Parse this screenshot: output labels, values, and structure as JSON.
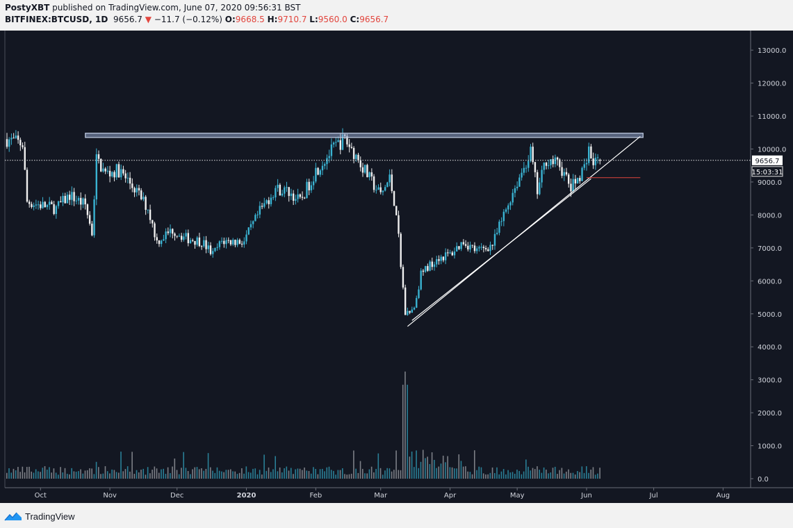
{
  "header": {
    "author": "PostyXBT",
    "published_text": "published on TradingView.com, June 07, 2020 09:56:31 BST",
    "symbol": "BITFINEX:BTCUSD, 1D",
    "last": "9656.7",
    "change_arrow": "▼",
    "change": "−11.7 (−0.12%)",
    "open_label": "O:",
    "open": "9668.5",
    "high_label": "H:",
    "high": "9710.7",
    "low_label": "L:",
    "low": "9560.0",
    "close_label": "C:",
    "close": "9656.7"
  },
  "price_tag": "9656.7",
  "countdown_tag": "15:03:31",
  "footer": {
    "brand": "TradingView"
  },
  "colors": {
    "up": "#3ab3d2",
    "down": "#f0f0f0",
    "background": "#131722",
    "down_text": "#e2453d"
  },
  "chart_data": {
    "type": "candlestick",
    "y_ticks": [
      "13000.0",
      "12000.0",
      "11000.0",
      "10000.0",
      "9000.0",
      "8000.0",
      "7000.0",
      "6000.0",
      "5000.0",
      "4000.0",
      "3000.0",
      "2000.0",
      "1000.0",
      "0.0"
    ],
    "x_ticks": [
      {
        "label": "Oct",
        "date": "2019-10-01"
      },
      {
        "label": "Nov",
        "date": "2019-11-01"
      },
      {
        "label": "Dec",
        "date": "2019-12-01"
      },
      {
        "label": "2020",
        "date": "2020-01-01"
      },
      {
        "label": "Feb",
        "date": "2020-02-01"
      },
      {
        "label": "Mar",
        "date": "2020-03-01"
      },
      {
        "label": "Apr",
        "date": "2020-04-01"
      },
      {
        "label": "May",
        "date": "2020-05-01"
      },
      {
        "label": "Jun",
        "date": "2020-06-01"
      },
      {
        "label": "Jul",
        "date": "2020-07-01"
      },
      {
        "label": "Aug",
        "date": "2020-08-01"
      }
    ],
    "start_date": "2019-09-16",
    "end_date": "2020-06-07",
    "price_ohlc_anchor_points": [
      [
        "2019-09-16",
        10300
      ],
      [
        "2019-09-23",
        10150
      ],
      [
        "2019-09-25",
        8400
      ],
      [
        "2019-10-01",
        8300
      ],
      [
        "2019-10-08",
        8200
      ],
      [
        "2019-10-14",
        8600
      ],
      [
        "2019-10-21",
        8300
      ],
      [
        "2019-10-24",
        7450
      ],
      [
        "2019-10-26",
        9700
      ],
      [
        "2019-10-30",
        9250
      ],
      [
        "2019-11-05",
        9350
      ],
      [
        "2019-11-12",
        8800
      ],
      [
        "2019-11-18",
        8200
      ],
      [
        "2019-11-22",
        7200
      ],
      [
        "2019-11-29",
        7550
      ],
      [
        "2019-12-05",
        7300
      ],
      [
        "2019-12-12",
        7200
      ],
      [
        "2019-12-17",
        6800
      ],
      [
        "2019-12-21",
        7200
      ],
      [
        "2019-12-31",
        7200
      ],
      [
        "2020-01-07",
        8100
      ],
      [
        "2020-01-14",
        8800
      ],
      [
        "2020-01-20",
        8700
      ],
      [
        "2020-01-25",
        8400
      ],
      [
        "2020-02-01",
        9350
      ],
      [
        "2020-02-10",
        10100
      ],
      [
        "2020-02-14",
        10300
      ],
      [
        "2020-02-19",
        9800
      ],
      [
        "2020-02-25",
        9100
      ],
      [
        "2020-03-01",
        8600
      ],
      [
        "2020-03-05",
        9100
      ],
      [
        "2020-03-08",
        8100
      ],
      [
        "2020-03-12",
        5000
      ],
      [
        "2020-03-16",
        5200
      ],
      [
        "2020-03-19",
        6200
      ],
      [
        "2020-03-26",
        6700
      ],
      [
        "2020-04-01",
        6800
      ],
      [
        "2020-04-07",
        7200
      ],
      [
        "2020-04-13",
        6900
      ],
      [
        "2020-04-20",
        7100
      ],
      [
        "2020-04-29",
        8700
      ],
      [
        "2020-05-07",
        9900
      ],
      [
        "2020-05-10",
        8700
      ],
      [
        "2020-05-14",
        9700
      ],
      [
        "2020-05-20",
        9500
      ],
      [
        "2020-05-25",
        8800
      ],
      [
        "2020-05-31",
        9450
      ],
      [
        "2020-06-02",
        10100
      ],
      [
        "2020-06-03",
        9600
      ],
      [
        "2020-06-07",
        9656.7
      ]
    ],
    "volume_ticks_note": "volume pane shares right axis labels 3000.0 … 0.0",
    "annotations": [
      {
        "type": "resistance-zone",
        "from": "2019-10-26",
        "to": "2020-06-25",
        "y": [
          10350,
          10480
        ]
      },
      {
        "type": "trendline",
        "from": [
          "2020-03-13",
          4620
        ],
        "to": [
          "2020-06-25",
          10380
        ]
      },
      {
        "type": "trendline",
        "from": [
          "2020-03-15",
          4800
        ],
        "to": [
          "2020-06-03",
          9100
        ]
      },
      {
        "type": "level",
        "from": "2020-06-01",
        "to": "2020-06-25",
        "y": 9130
      }
    ]
  }
}
